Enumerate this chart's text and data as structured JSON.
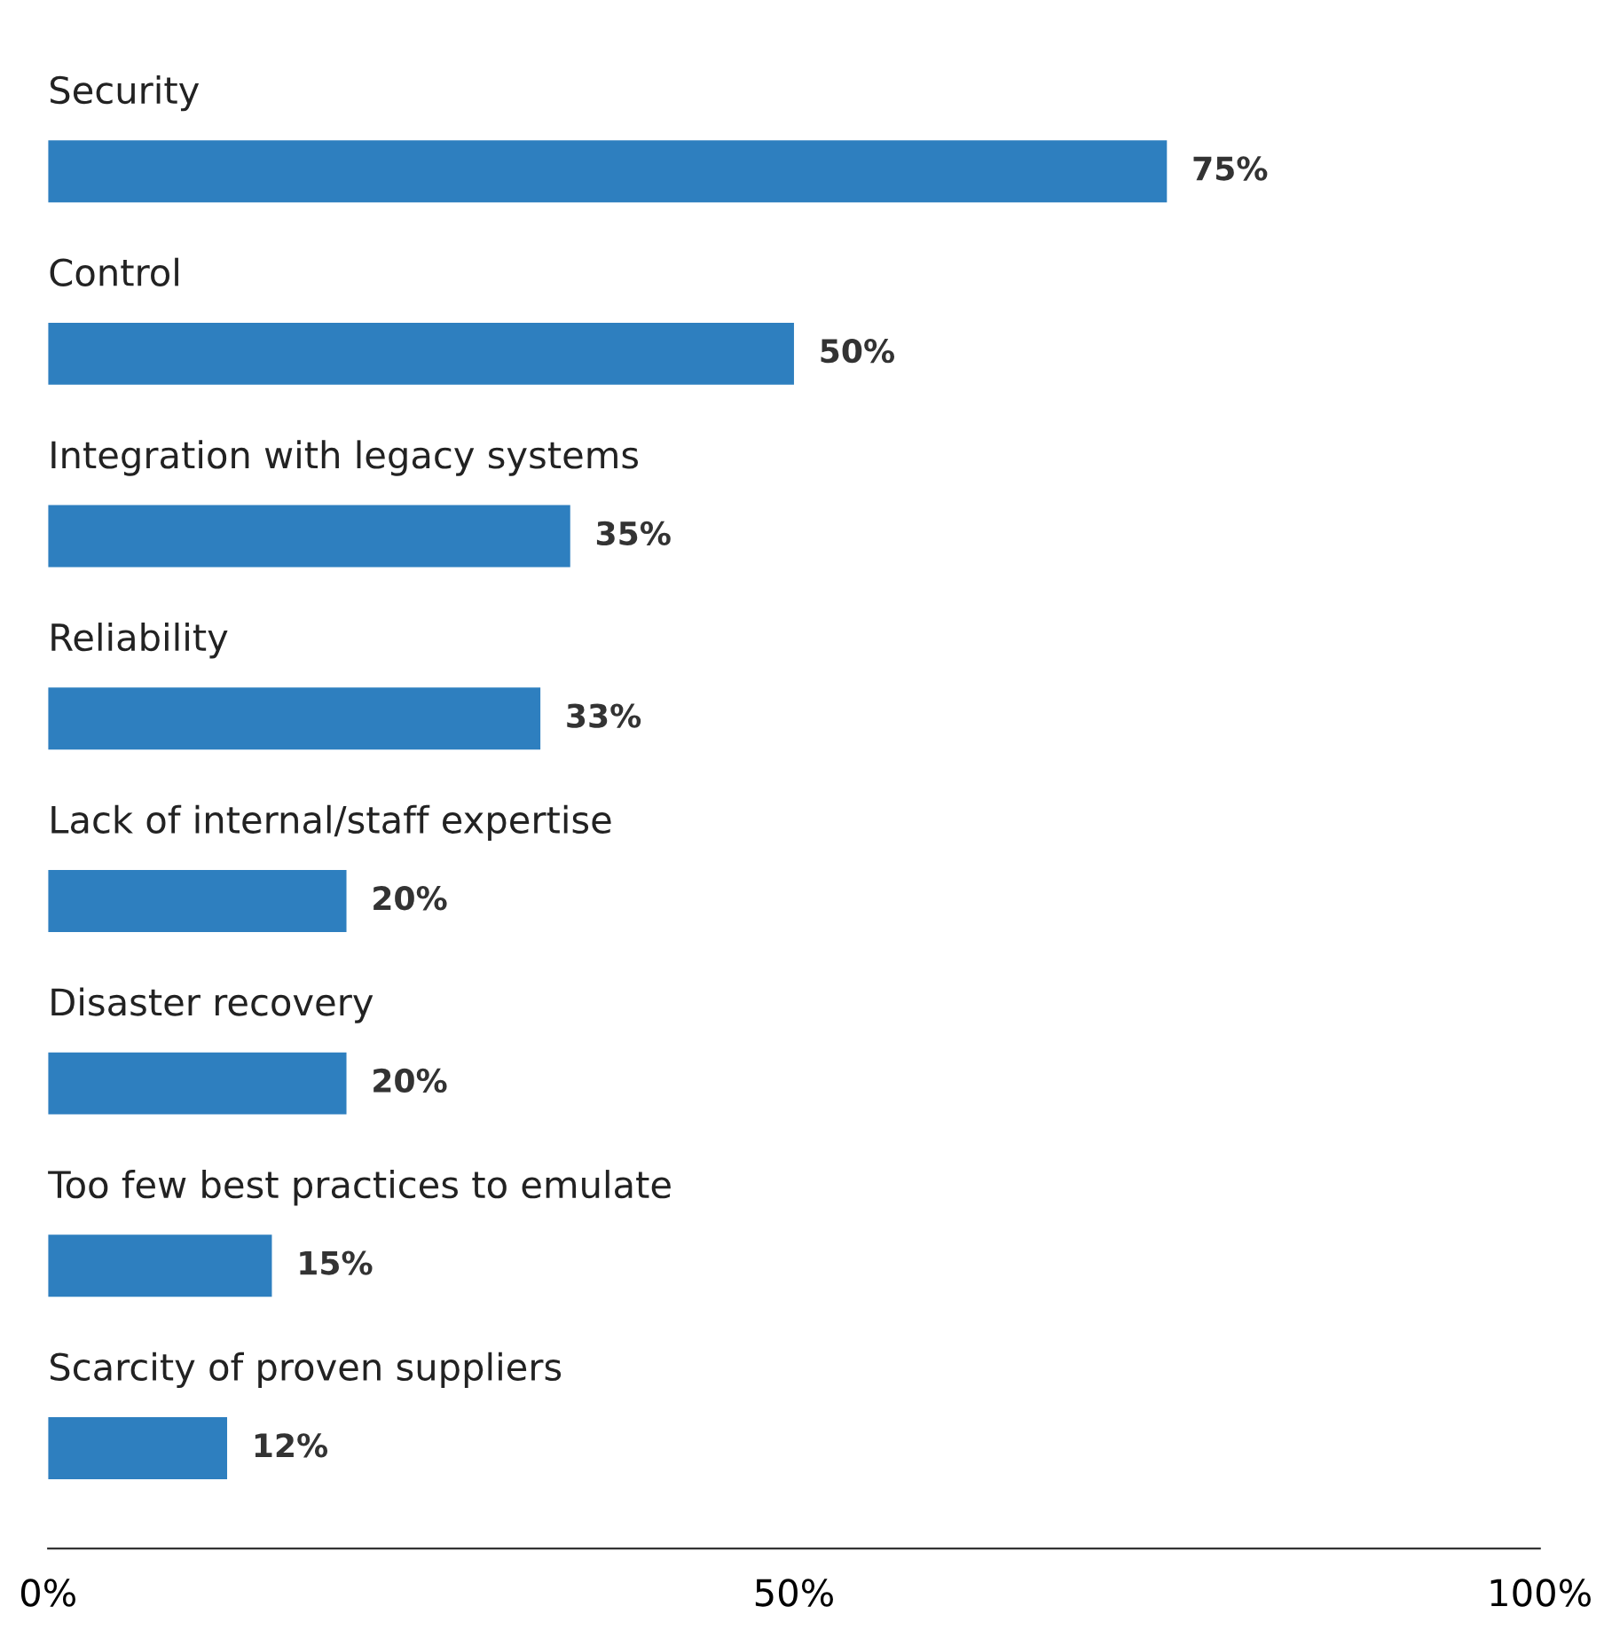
{
  "chart_data": {
    "type": "bar",
    "orientation": "horizontal",
    "categories": [
      "Security",
      "Control",
      "Integration with legacy systems",
      "Reliability",
      "Lack of internal/staff expertise",
      "Disaster recovery",
      "Too few best practices to emulate",
      "Scarcity of proven suppliers"
    ],
    "values": [
      75,
      50,
      35,
      33,
      20,
      20,
      15,
      12
    ],
    "value_labels": [
      "75%",
      "50%",
      "35%",
      "33%",
      "20%",
      "20%",
      "15%",
      "12%"
    ],
    "color": "#2e7fbf",
    "xlim": [
      0,
      100
    ],
    "xticks": [
      {
        "value": 0,
        "label": "0%"
      },
      {
        "value": 50,
        "label": "50%"
      },
      {
        "value": 100,
        "label": "100%"
      }
    ],
    "grid": false,
    "legend": false
  }
}
